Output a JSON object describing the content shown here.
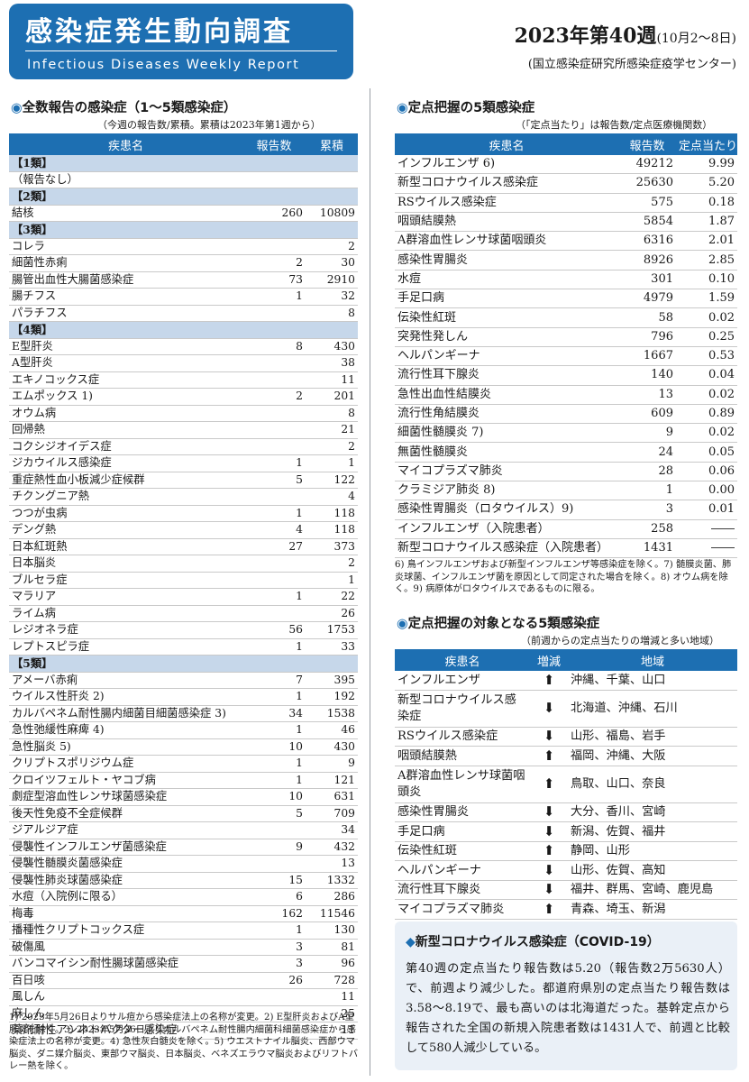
{
  "header": {
    "title": "感染症発生動向調査",
    "subtitle": "Infectious Diseases Weekly Report",
    "week": "2023年第40週",
    "week_range": "(10月2～8日)",
    "org": "(国立感染症研究所感染症疫学センター)",
    "brand_color": "#1d6fb2"
  },
  "left": {
    "title": "全数報告の感染症（1～5類感染症）",
    "note": "（今週の報告数/累積。累積は2023年第1週から）",
    "headers": [
      "疾患名",
      "報告数",
      "累積"
    ],
    "rows": [
      {
        "cat": "【1類】"
      },
      {
        "name": "（報告なし）",
        "count": "",
        "total": ""
      },
      {
        "cat": "【2類】"
      },
      {
        "name": "結核",
        "count": "260",
        "total": "10809"
      },
      {
        "cat": "【3類】"
      },
      {
        "name": "コレラ",
        "count": "",
        "total": "2"
      },
      {
        "name": "細菌性赤痢",
        "count": "2",
        "total": "30"
      },
      {
        "name": "腸管出血性大腸菌感染症",
        "count": "73",
        "total": "2910"
      },
      {
        "name": "腸チフス",
        "count": "1",
        "total": "32"
      },
      {
        "name": "パラチフス",
        "count": "",
        "total": "8"
      },
      {
        "cat": "【4類】"
      },
      {
        "name": "E型肝炎",
        "count": "8",
        "total": "430"
      },
      {
        "name": "A型肝炎",
        "count": "",
        "total": "38"
      },
      {
        "name": "エキノコックス症",
        "count": "",
        "total": "11"
      },
      {
        "name": "エムポックス 1)",
        "count": "2",
        "total": "201"
      },
      {
        "name": "オウム病",
        "count": "",
        "total": "8"
      },
      {
        "name": "回帰熱",
        "count": "",
        "total": "21"
      },
      {
        "name": "コクシジオイデス症",
        "count": "",
        "total": "2"
      },
      {
        "name": "ジカウイルス感染症",
        "count": "1",
        "total": "1"
      },
      {
        "name": "重症熱性血小板減少症候群",
        "count": "5",
        "total": "122"
      },
      {
        "name": "チクングニア熱",
        "count": "",
        "total": "4"
      },
      {
        "name": "つつが虫病",
        "count": "1",
        "total": "118"
      },
      {
        "name": "デング熱",
        "count": "4",
        "total": "118"
      },
      {
        "name": "日本紅斑熱",
        "count": "27",
        "total": "373"
      },
      {
        "name": "日本脳炎",
        "count": "",
        "total": "2"
      },
      {
        "name": "ブルセラ症",
        "count": "",
        "total": "1"
      },
      {
        "name": "マラリア",
        "count": "1",
        "total": "22"
      },
      {
        "name": "ライム病",
        "count": "",
        "total": "26"
      },
      {
        "name": "レジオネラ症",
        "count": "56",
        "total": "1753"
      },
      {
        "name": "レプトスピラ症",
        "count": "1",
        "total": "33"
      },
      {
        "cat": "【5類】"
      },
      {
        "name": "アメーバ赤痢",
        "count": "7",
        "total": "395"
      },
      {
        "name": "ウイルス性肝炎 2)",
        "count": "1",
        "total": "192"
      },
      {
        "name": "カルバペネム耐性腸内細菌目細菌感染症 3)",
        "count": "34",
        "total": "1538"
      },
      {
        "name": "急性弛緩性麻痺 4)",
        "count": "1",
        "total": "46"
      },
      {
        "name": "急性脳炎 5)",
        "count": "10",
        "total": "430"
      },
      {
        "name": "クリプトスポリジウム症",
        "count": "1",
        "total": "9"
      },
      {
        "name": "クロイツフェルト・ヤコブ病",
        "count": "1",
        "total": "121"
      },
      {
        "name": "劇症型溶血性レンサ球菌感染症",
        "count": "10",
        "total": "631"
      },
      {
        "name": "後天性免疫不全症候群",
        "count": "5",
        "total": "709"
      },
      {
        "name": "ジアルジア症",
        "count": "",
        "total": "34"
      },
      {
        "name": "侵襲性インフルエンザ菌感染症",
        "count": "9",
        "total": "432"
      },
      {
        "name": "侵襲性髄膜炎菌感染症",
        "count": "",
        "total": "13"
      },
      {
        "name": "侵襲性肺炎球菌感染症",
        "count": "15",
        "total": "1332"
      },
      {
        "name": "水痘（入院例に限る）",
        "count": "6",
        "total": "286"
      },
      {
        "name": "梅毒",
        "count": "162",
        "total": "11546"
      },
      {
        "name": "播種性クリプトコックス症",
        "count": "1",
        "total": "130"
      },
      {
        "name": "破傷風",
        "count": "3",
        "total": "81"
      },
      {
        "name": "バンコマイシン耐性腸球菌感染症",
        "count": "3",
        "total": "96"
      },
      {
        "name": "百日咳",
        "count": "26",
        "total": "728"
      },
      {
        "name": "風しん",
        "count": "",
        "total": "11"
      },
      {
        "name": "麻しん",
        "count": "",
        "total": "25"
      },
      {
        "name": "薬剤耐性アシネトバクター感染症",
        "count": "",
        "total": "11"
      }
    ],
    "footnote": "1) 2023年5月26日よりサル痘から感染症法上の名称が変更。2) E型肝炎およびA型肝炎を除く。3) 2023年5月26日よりカルバペネム耐性腸内細菌科細菌感染症から感染症法上の名称が変更。4) 急性灰白髄炎を除く。5) ウエストナイル脳炎、西部ウマ脳炎、ダニ媒介脳炎、東部ウマ脳炎、日本脳炎、ベネズエラウマ脳炎およびリフトバレー熱を除く。"
  },
  "right": {
    "title": "定点把握の5類感染症",
    "note": "（「定点当たり」は報告数/定点医療機関数）",
    "headers": [
      "疾患名",
      "報告数",
      "定点当たり"
    ],
    "rows": [
      {
        "name": "インフルエンザ 6)",
        "count": "49212",
        "per": "9.99"
      },
      {
        "name": "新型コロナウイルス感染症",
        "count": "25630",
        "per": "5.20"
      },
      {
        "name": "RSウイルス感染症",
        "count": "575",
        "per": "0.18"
      },
      {
        "name": "咽頭結膜熱",
        "count": "5854",
        "per": "1.87"
      },
      {
        "name": "A群溶血性レンサ球菌咽頭炎",
        "count": "6316",
        "per": "2.01"
      },
      {
        "name": "感染性胃腸炎",
        "count": "8926",
        "per": "2.85"
      },
      {
        "name": "水痘",
        "count": "301",
        "per": "0.10"
      },
      {
        "name": "手足口病",
        "count": "4979",
        "per": "1.59"
      },
      {
        "name": "伝染性紅斑",
        "count": "58",
        "per": "0.02"
      },
      {
        "name": "突発性発しん",
        "count": "796",
        "per": "0.25"
      },
      {
        "name": "ヘルパンギーナ",
        "count": "1667",
        "per": "0.53"
      },
      {
        "name": "流行性耳下腺炎",
        "count": "140",
        "per": "0.04"
      },
      {
        "name": "急性出血性結膜炎",
        "count": "13",
        "per": "0.02"
      },
      {
        "name": "流行性角結膜炎",
        "count": "609",
        "per": "0.89"
      },
      {
        "name": "細菌性髄膜炎 7)",
        "count": "9",
        "per": "0.02"
      },
      {
        "name": "無菌性髄膜炎",
        "count": "24",
        "per": "0.05"
      },
      {
        "name": "マイコプラズマ肺炎",
        "count": "28",
        "per": "0.06"
      },
      {
        "name": "クラミジア肺炎 8)",
        "count": "1",
        "per": "0.00"
      },
      {
        "name": "感染性胃腸炎（ロタウイルス）9)",
        "count": "3",
        "per": "0.01"
      },
      {
        "name": "インフルエンザ（入院患者）",
        "count": "258",
        "per": "――"
      },
      {
        "name": "新型コロナウイルス感染症（入院患者）",
        "count": "1431",
        "per": "――"
      }
    ],
    "footnote": "6) 鳥インフルエンザおよび新型インフルエンザ等感染症を除く。7) 髄膜炎菌、肺炎球菌、インフルエンザ菌を原因として同定された場合を除く。8) オウム病を除く。9) 病原体がロタウイルスであるものに限る。"
  },
  "trend": {
    "title": "定点把握の対象となる5類感染症",
    "note": "（前週からの定点当たりの増減と多い地域）",
    "headers": [
      "疾患名",
      "増減",
      "地域"
    ],
    "rows": [
      {
        "name": "インフルエンザ",
        "dir": "up",
        "region": "沖縄、千葉、山口"
      },
      {
        "name": "新型コロナウイルス感染症",
        "dir": "down",
        "region": "北海道、沖縄、石川",
        "two": true
      },
      {
        "name": "RSウイルス感染症",
        "dir": "down",
        "region": "山形、福島、岩手"
      },
      {
        "name": "咽頭結膜熱",
        "dir": "up",
        "region": "福岡、沖縄、大阪"
      },
      {
        "name": "A群溶血性レンサ球菌咽頭炎",
        "dir": "up",
        "region": "鳥取、山口、奈良",
        "two": true
      },
      {
        "name": "感染性胃腸炎",
        "dir": "down",
        "region": "大分、香川、宮崎"
      },
      {
        "name": "手足口病",
        "dir": "down",
        "region": "新潟、佐賀、福井"
      },
      {
        "name": "伝染性紅斑",
        "dir": "up",
        "region": "静岡、山形"
      },
      {
        "name": "ヘルパンギーナ",
        "dir": "down",
        "region": "山形、佐賀、高知"
      },
      {
        "name": "流行性耳下腺炎",
        "dir": "down",
        "region": "福井、群馬、宮崎、鹿児島"
      },
      {
        "name": "マイコプラズマ肺炎",
        "dir": "up",
        "region": "青森、埼玉、新潟"
      }
    ]
  },
  "covid": {
    "title": "新型コロナウイルス感染症（COVID-19）",
    "body": "第40週の定点当たり報告数は5.20（報告数2万5630人）で、前週より減少した。都道府県別の定点当たり報告数は3.58～8.19で、最も高いのは北海道だった。基幹定点から報告された全国の新規入院患者数は1431人で、前週と比較して580人減少している。"
  }
}
